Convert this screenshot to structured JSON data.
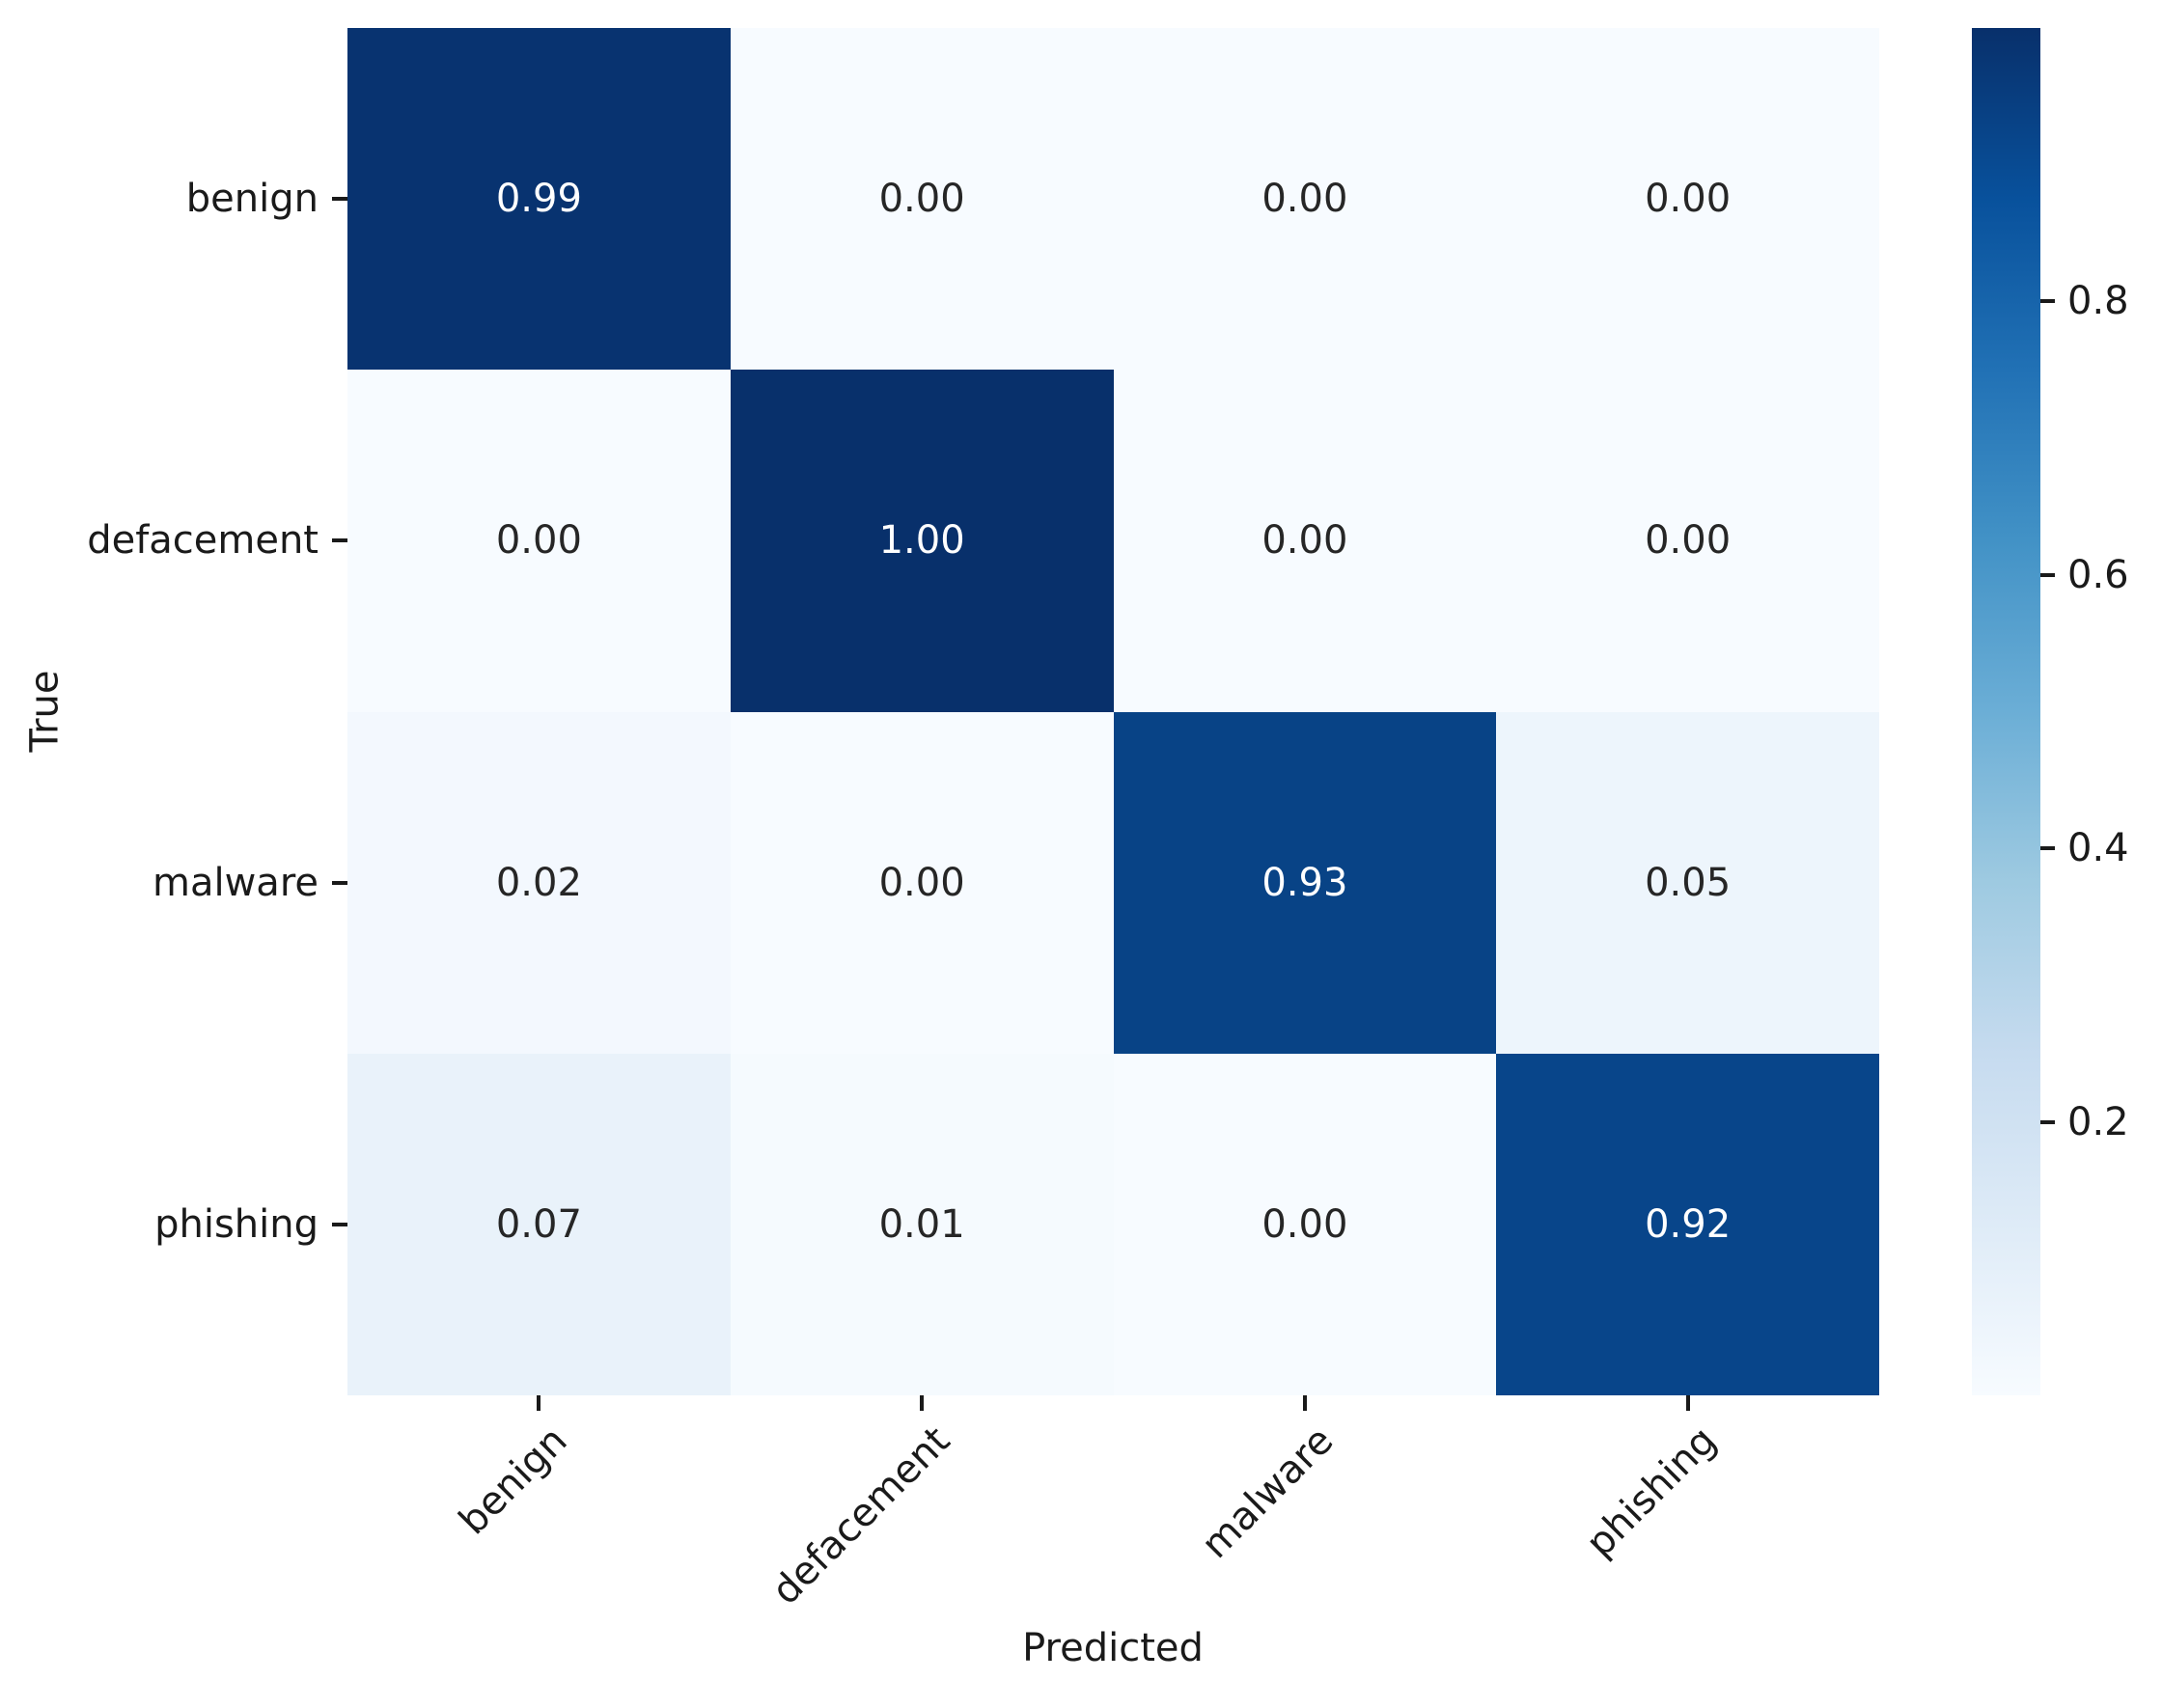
{
  "figure": {
    "background": "#ffffff",
    "text_color": "#1a1a1a"
  },
  "chart_data": {
    "type": "heatmap",
    "title": "",
    "xlabel": "Predicted",
    "ylabel": "True",
    "x_categories": [
      "benign",
      "defacement",
      "malware",
      "phishing"
    ],
    "y_categories": [
      "benign",
      "defacement",
      "malware",
      "phishing"
    ],
    "values": [
      [
        0.99,
        0.0,
        0.0,
        0.0
      ],
      [
        0.0,
        1.0,
        0.0,
        0.0
      ],
      [
        0.02,
        0.0,
        0.93,
        0.05
      ],
      [
        0.07,
        0.01,
        0.0,
        0.92
      ]
    ],
    "cell_labels": [
      [
        "0.99",
        "0.00",
        "0.00",
        "0.00"
      ],
      [
        "0.00",
        "1.00",
        "0.00",
        "0.00"
      ],
      [
        "0.02",
        "0.00",
        "0.93",
        "0.05"
      ],
      [
        "0.07",
        "0.01",
        "0.00",
        "0.92"
      ]
    ],
    "cell_colors": [
      [
        "#083370",
        "#f7fbff",
        "#f7fbff",
        "#f7fbff"
      ],
      [
        "#f7fbff",
        "#08306b",
        "#f7fbff",
        "#f7fbff"
      ],
      [
        "#f3f8fe",
        "#f7fbff",
        "#084386",
        "#edf5fc"
      ],
      [
        "#e9f2fa",
        "#f5fafe",
        "#f7fbff",
        "#08458a"
      ]
    ],
    "cell_text_colors": [
      [
        "#ffffff",
        "#262626",
        "#262626",
        "#262626"
      ],
      [
        "#262626",
        "#ffffff",
        "#262626",
        "#262626"
      ],
      [
        "#262626",
        "#262626",
        "#ffffff",
        "#262626"
      ],
      [
        "#262626",
        "#262626",
        "#262626",
        "#ffffff"
      ]
    ],
    "colormap": "Blues",
    "vmin": 0.0,
    "vmax": 1.0,
    "grid": false,
    "legend_position": "right",
    "colorbar": {
      "tick_labels": [
        "0.2",
        "0.4",
        "0.6",
        "0.8"
      ],
      "tick_values": [
        0.2,
        0.4,
        0.6,
        0.8
      ],
      "gradient_stops": [
        "#f7fbff",
        "#deebf7",
        "#c6dbef",
        "#9ecae1",
        "#6baed6",
        "#4292c6",
        "#2171b5",
        "#08519c",
        "#08306b"
      ]
    }
  }
}
